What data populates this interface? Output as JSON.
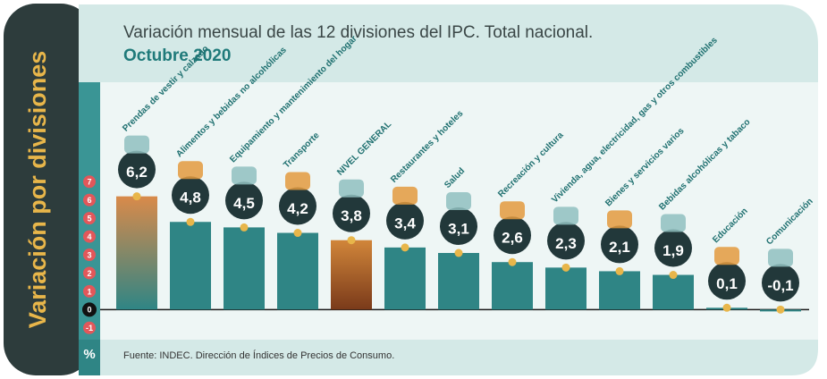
{
  "chart_data": {
    "type": "bar",
    "side_title": "Variación por divisiones",
    "title": "Variación mensual de las 12 divisiones del IPC. Total nacional.",
    "subtitle": "Octubre 2020",
    "y_unit": "%",
    "source": "Fuente: INDEC. Dirección de Índices de Precios de Consumo.",
    "categories": [
      "Prendas de vestir y calzado",
      "Alimentos y bebidas no alcohólicas",
      "Equipamiento y mantenimiento del hogar",
      "Transporte",
      "NIVEL GENERAL",
      "Restaurantes y hoteles",
      "Salud",
      "Recreación y cultura",
      "Vivienda, agua, electricidad, gas y otros combustibles",
      "Bienes y servicios varios",
      "Bebidas alcohólicas y tabaco",
      "Educación",
      "Comunicación"
    ],
    "values": [
      6.2,
      4.8,
      4.5,
      4.2,
      3.8,
      3.4,
      3.1,
      2.6,
      2.3,
      2.1,
      1.9,
      0.1,
      -0.1
    ],
    "value_labels": [
      "6,2",
      "4,8",
      "4,5",
      "4,2",
      "3,8",
      "3,4",
      "3,1",
      "2,6",
      "2,3",
      "2,1",
      "1,9",
      "0,1",
      "-0,1"
    ],
    "colors": [
      "#d98a4a",
      "#2f8585",
      "#2f8585",
      "#2f8585",
      "#c9782e",
      "#2f8585",
      "#2f8585",
      "#2f8585",
      "#2f8585",
      "#2f8585",
      "#2f8585",
      "#2f8585",
      "#2f8585"
    ],
    "ylim": [
      -1.5,
      12.3
    ],
    "yticks": [
      -1,
      0,
      1,
      2,
      3,
      4,
      5,
      6,
      7
    ]
  }
}
